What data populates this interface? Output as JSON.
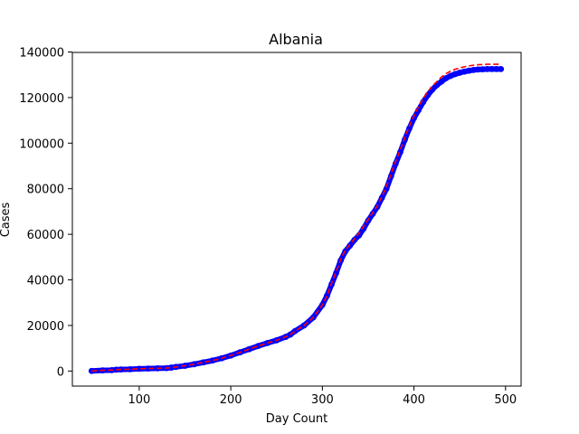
{
  "chart_data": {
    "type": "line",
    "title": "Albania",
    "xlabel": "Day Count",
    "ylabel": "Cases",
    "xlim": [
      27,
      517
    ],
    "ylim": [
      -6600,
      139800
    ],
    "x_ticks": [
      100,
      200,
      300,
      400,
      500
    ],
    "y_ticks": [
      0,
      20000,
      40000,
      60000,
      80000,
      100000,
      120000,
      140000
    ],
    "grid": false,
    "legend": "none",
    "series": [
      {
        "style": "points",
        "color": "#0000ff",
        "x": [
          48,
          60,
          70,
          75,
          80,
          90,
          100,
          110,
          120,
          130,
          135,
          140,
          150,
          160,
          170,
          180,
          190,
          200,
          210,
          220,
          230,
          240,
          250,
          260,
          265,
          270,
          280,
          290,
          300,
          305,
          310,
          315,
          320,
          325,
          330,
          335,
          340,
          345,
          350,
          355,
          360,
          365,
          370,
          375,
          380,
          385,
          390,
          395,
          400,
          405,
          410,
          415,
          420,
          425,
          430,
          435,
          440,
          445,
          450,
          455,
          460,
          465,
          470,
          475,
          480,
          485,
          490,
          495
        ],
        "y": [
          50,
          300,
          400,
          600,
          700,
          800,
          1000,
          1100,
          1200,
          1300,
          1500,
          1800,
          2300,
          3000,
          3800,
          4600,
          5600,
          6800,
          8200,
          9600,
          11000,
          12300,
          13500,
          15000,
          16000,
          17500,
          20000,
          23500,
          29000,
          33000,
          38000,
          43000,
          48500,
          52500,
          55000,
          57500,
          59500,
          62500,
          66000,
          69000,
          72000,
          76000,
          80000,
          85500,
          91000,
          96000,
          101500,
          106500,
          111000,
          114500,
          118000,
          121000,
          123500,
          125500,
          127000,
          128500,
          129500,
          130300,
          130900,
          131400,
          131800,
          132100,
          132300,
          132400,
          132500,
          132500,
          132500,
          132500
        ]
      },
      {
        "style": "dashed",
        "color": "#ff0000",
        "x": [
          48,
          60,
          70,
          75,
          80,
          90,
          100,
          110,
          120,
          130,
          135,
          140,
          150,
          160,
          170,
          180,
          190,
          200,
          210,
          220,
          230,
          240,
          250,
          260,
          265,
          270,
          280,
          290,
          300,
          305,
          310,
          315,
          320,
          325,
          330,
          335,
          340,
          345,
          350,
          355,
          360,
          365,
          370,
          375,
          380,
          385,
          390,
          395,
          400,
          405,
          410,
          415,
          420,
          425,
          430,
          435,
          440,
          445,
          450,
          455,
          460,
          465,
          470,
          475,
          480,
          485,
          490,
          495
        ],
        "y": [
          50,
          300,
          400,
          600,
          700,
          800,
          1000,
          1100,
          1200,
          1300,
          1500,
          1800,
          2300,
          3000,
          3800,
          4600,
          5600,
          6800,
          8200,
          9600,
          11000,
          12300,
          13500,
          15000,
          16000,
          17500,
          20000,
          23500,
          29000,
          33000,
          38500,
          43500,
          49000,
          53000,
          55500,
          58000,
          60500,
          63500,
          66500,
          69500,
          72500,
          76500,
          81000,
          86500,
          92000,
          97000,
          102500,
          107500,
          112000,
          116000,
          119500,
          122500,
          125000,
          127000,
          129000,
          130500,
          131600,
          132400,
          133000,
          133500,
          133900,
          134200,
          134400,
          134500,
          134600,
          134600,
          134600,
          134600
        ]
      }
    ]
  }
}
